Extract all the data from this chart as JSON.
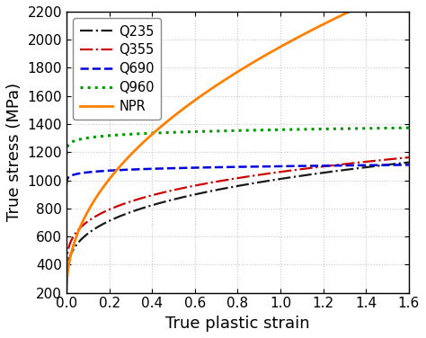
{
  "title": "",
  "xlabel": "True plastic strain",
  "ylabel": "True stress (MPa)",
  "xlim": [
    0,
    1.6
  ],
  "ylim": [
    200,
    2200
  ],
  "xticks": [
    0.0,
    0.2,
    0.4,
    0.6,
    0.8,
    1.0,
    1.2,
    1.4,
    1.6
  ],
  "yticks": [
    200,
    400,
    600,
    800,
    1000,
    1200,
    1400,
    1600,
    1800,
    2000,
    2200
  ],
  "grid_color": "#c8c8c8",
  "background_color": "#ffffff",
  "curves": [
    {
      "label": "Q235",
      "color": "#1a1a1a",
      "linestyle": "-.",
      "linewidth": 1.6,
      "sigma0": 230,
      "K": 780,
      "n": 0.3
    },
    {
      "label": "Q355",
      "color": "#cc0000",
      "linestyle": "-.",
      "linewidth": 1.6,
      "sigma0": 300,
      "K": 760,
      "n": 0.27
    },
    {
      "label": "Q690",
      "color": "#0000dd",
      "linestyle": "--",
      "linewidth": 1.8,
      "sigma0": 870,
      "K": 230,
      "n": 0.09
    },
    {
      "label": "Q960",
      "color": "#009900",
      "linestyle": ":",
      "linewidth": 2.2,
      "sigma0": 1050,
      "K": 310,
      "n": 0.09
    },
    {
      "label": "NPR",
      "color": "#ff8000",
      "linestyle": "-",
      "linewidth": 2.0,
      "sigma0": 200,
      "K": 1750,
      "n": 0.48
    }
  ],
  "legend_fontsize": 10.5,
  "axis_fontsize": 13,
  "tick_fontsize": 11
}
